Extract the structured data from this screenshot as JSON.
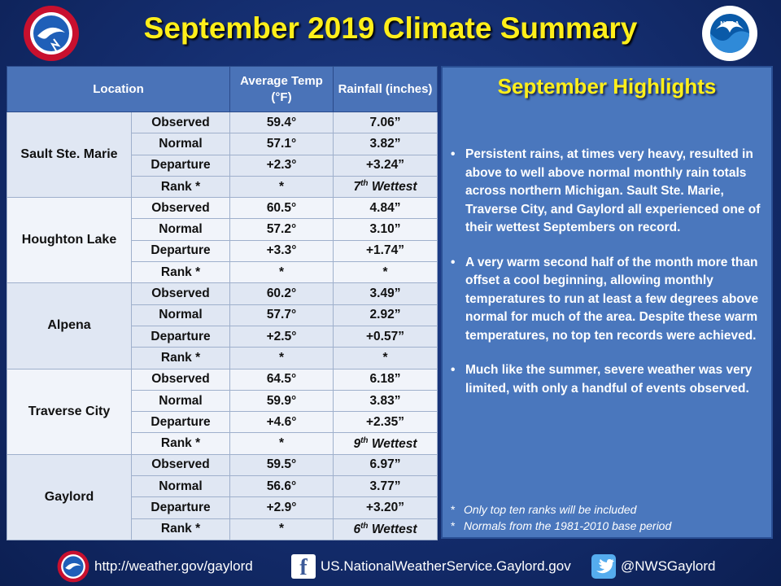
{
  "header": {
    "title": "September 2019 Climate Summary"
  },
  "table": {
    "headers": {
      "location": "Location",
      "temp": "Average Temp (°F)",
      "rain": "Rainfall (inches)"
    },
    "rows_labels": [
      "Observed",
      "Normal",
      "Departure",
      "Rank *"
    ],
    "locations": [
      {
        "name": "Sault Ste. Marie",
        "temp": [
          "59.4°",
          "57.1°",
          "+2.3°",
          "*"
        ],
        "rain": [
          "7.06”",
          "3.82”",
          "+3.24”"
        ],
        "rank_rain": {
          "num": "7",
          "suffix": "th",
          "word": "Wettest"
        }
      },
      {
        "name": "Houghton Lake",
        "temp": [
          "60.5°",
          "57.2°",
          "+3.3°",
          "*"
        ],
        "rain": [
          "4.84”",
          "3.10”",
          "+1.74”"
        ],
        "rank_rain": {
          "plain": "*"
        }
      },
      {
        "name": "Alpena",
        "temp": [
          "60.2°",
          "57.7°",
          "+2.5°",
          "*"
        ],
        "rain": [
          "3.49”",
          "2.92”",
          "+0.57”"
        ],
        "rank_rain": {
          "plain": "*"
        }
      },
      {
        "name": "Traverse City",
        "temp": [
          "64.5°",
          "59.9°",
          "+4.6°",
          "*"
        ],
        "rain": [
          "6.18”",
          "3.83”",
          "+2.35”"
        ],
        "rank_rain": {
          "num": "9",
          "suffix": "th",
          "word": "Wettest"
        }
      },
      {
        "name": "Gaylord",
        "temp": [
          "59.5°",
          "56.6°",
          "+2.9°",
          "*"
        ],
        "rain": [
          "6.97”",
          "3.77”",
          "+3.20”"
        ],
        "rank_rain": {
          "num": "6",
          "suffix": "th",
          "word": "Wettest"
        }
      }
    ]
  },
  "highlights": {
    "title": "September Highlights",
    "bullets": [
      "Persistent rains, at times very heavy, resulted in above to well above normal monthly rain totals across northern Michigan.  Sault Ste. Marie, Traverse City, and Gaylord all experienced one of their wettest Septembers on record.",
      "A very warm second half of the month more than offset a cool beginning, allowing monthly temperatures to run at least a few degrees above normal for much of the area. Despite these warm temperatures, no top ten records were achieved.",
      "Much like the summer, severe weather was very limited, with only a handful of events observed."
    ],
    "notes": [
      "Only top ten ranks will be included",
      "Normals from the 1981-2010 base period"
    ]
  },
  "footer": {
    "website": "http://weather.gov/gaylord",
    "facebook": "US.NationalWeatherService.Gaylord.gov",
    "twitter": "@NWSGaylord"
  },
  "colors": {
    "title": "#ffef1a",
    "record": "#e01010",
    "panel": "#4a77bd",
    "header": "#4a73b8"
  },
  "logos": {
    "left": "nws-logo",
    "right": "noaa-logo"
  },
  "logo_lettering": [
    "NATIONAL WEATHER SERVICE",
    "NOAA"
  ]
}
